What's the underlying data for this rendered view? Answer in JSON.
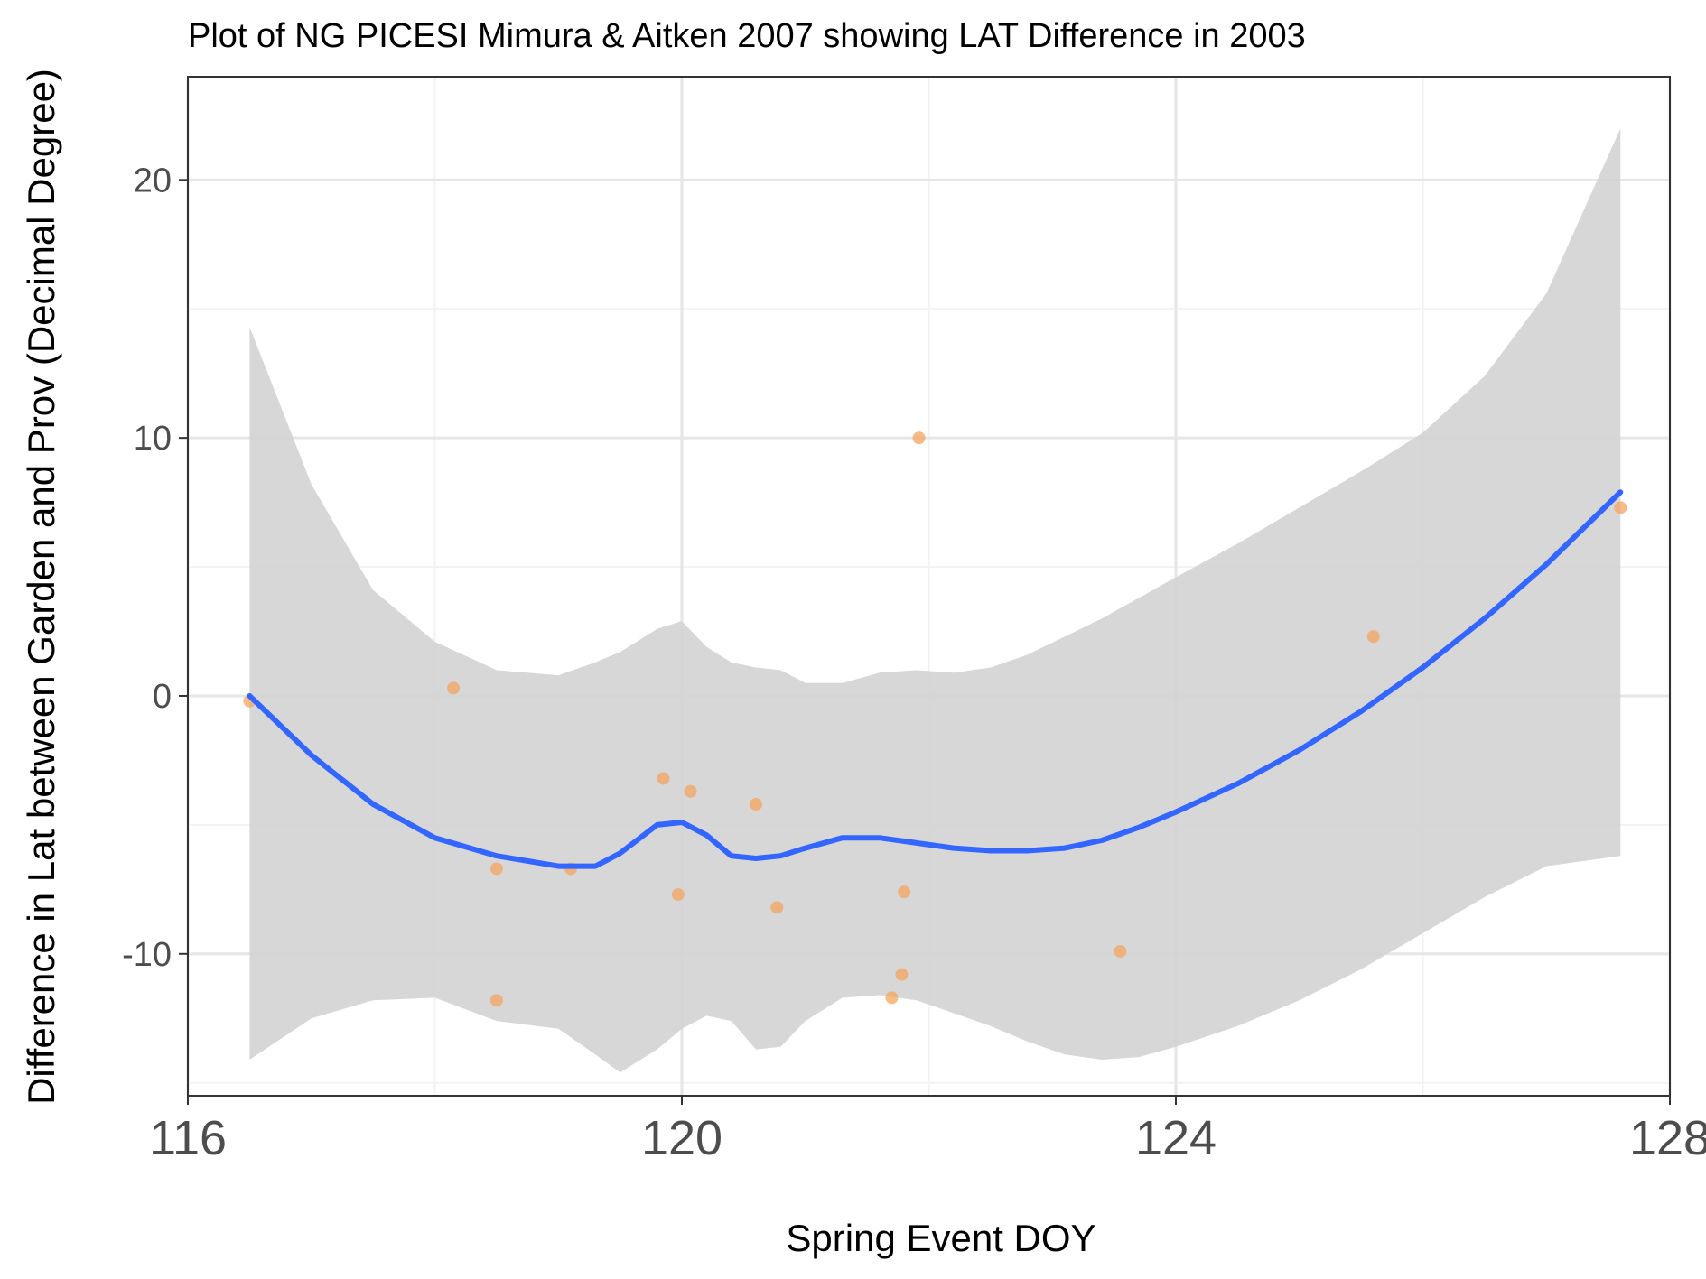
{
  "chart_data": {
    "type": "scatter",
    "title": "Plot of NG PICESI Mimura & Aitken 2007 showing LAT Difference in 2003",
    "xlabel": "Spring Event DOY",
    "ylabel": "Difference in Lat between Garden and Prov (Decimal Degree)",
    "xlim": [
      116,
      128
    ],
    "ylim": [
      -15.5,
      24
    ],
    "xticks": [
      116,
      120,
      124,
      128
    ],
    "yticks": [
      -10,
      0,
      10,
      20
    ],
    "grid": true,
    "points": {
      "color": "#f4a460",
      "x": [
        116.5,
        118.15,
        118.5,
        118.5,
        119.1,
        119.85,
        119.97,
        120.07,
        120.6,
        120.77,
        121.7,
        121.78,
        121.8,
        121.92,
        123.55,
        125.6,
        127.6
      ],
      "y": [
        -0.2,
        0.3,
        -6.7,
        -11.8,
        -6.7,
        -3.2,
        -7.7,
        -3.7,
        -4.2,
        -8.2,
        -11.7,
        -10.8,
        -7.6,
        10.0,
        -9.9,
        2.3,
        7.3
      ]
    },
    "smooth": {
      "color": "#3366ff",
      "band_color": "#d3d3d3",
      "x": [
        116.5,
        117.0,
        117.5,
        118.0,
        118.5,
        119.0,
        119.3,
        119.5,
        119.8,
        120.0,
        120.2,
        120.4,
        120.6,
        120.8,
        121.0,
        121.3,
        121.6,
        121.9,
        122.2,
        122.5,
        122.8,
        123.1,
        123.4,
        123.7,
        124.0,
        124.5,
        125.0,
        125.5,
        126.0,
        126.5,
        127.0,
        127.6
      ],
      "y": [
        0.0,
        -2.3,
        -4.2,
        -5.5,
        -6.2,
        -6.6,
        -6.6,
        -6.1,
        -5.0,
        -4.9,
        -5.4,
        -6.2,
        -6.3,
        -6.2,
        -5.9,
        -5.5,
        -5.5,
        -5.7,
        -5.9,
        -6.0,
        -6.0,
        -5.9,
        -5.6,
        -5.1,
        -4.5,
        -3.4,
        -2.1,
        -0.6,
        1.1,
        3.0,
        5.1,
        7.9
      ],
      "lower": [
        -14.1,
        -12.5,
        -11.8,
        -11.7,
        -12.6,
        -12.9,
        -13.9,
        -14.6,
        -13.7,
        -12.9,
        -12.4,
        -12.6,
        -13.7,
        -13.6,
        -12.6,
        -11.7,
        -11.6,
        -11.8,
        -12.3,
        -12.8,
        -13.4,
        -13.9,
        -14.1,
        -14.0,
        -13.6,
        -12.8,
        -11.8,
        -10.6,
        -9.2,
        -7.8,
        -6.6,
        -6.2
      ],
      "upper": [
        14.3,
        8.2,
        4.1,
        2.1,
        1.0,
        0.8,
        1.3,
        1.7,
        2.6,
        2.9,
        1.9,
        1.3,
        1.1,
        1.0,
        0.5,
        0.5,
        0.9,
        1.0,
        0.9,
        1.1,
        1.6,
        2.3,
        3.0,
        3.8,
        4.6,
        5.9,
        7.3,
        8.7,
        10.2,
        12.4,
        15.6,
        22.0
      ]
    }
  }
}
